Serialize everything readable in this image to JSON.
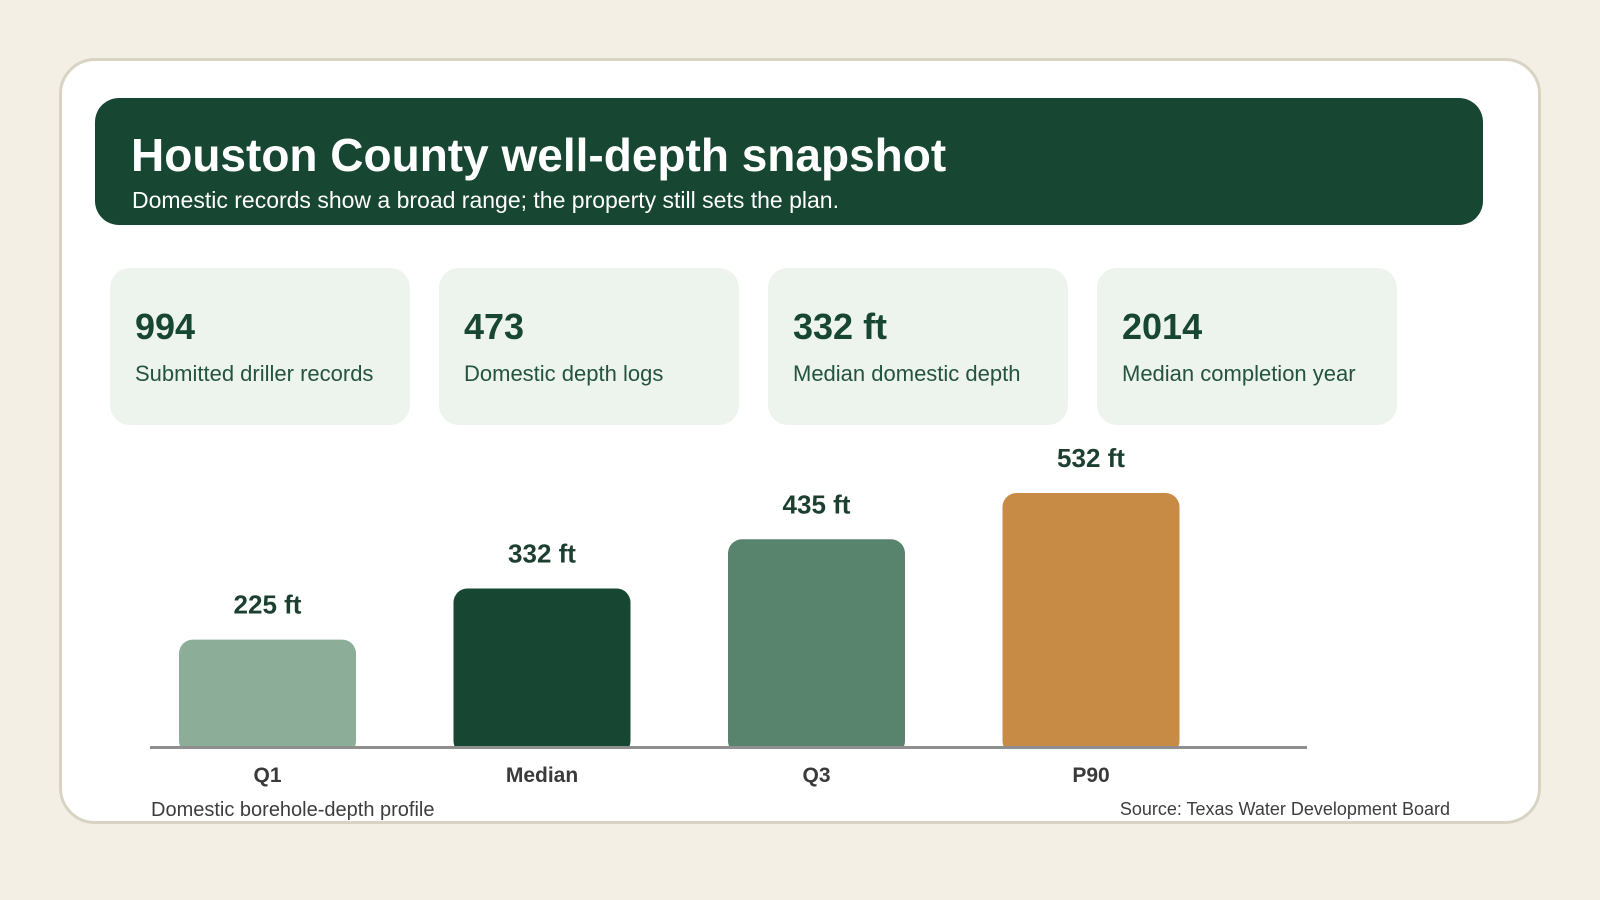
{
  "header": {
    "title": "Houston County well-depth snapshot",
    "subtitle": "Domestic records show a broad range; the property still sets the plan."
  },
  "stats": [
    {
      "value": "994",
      "label": "Submitted driller records"
    },
    {
      "value": "473",
      "label": "Domestic depth logs"
    },
    {
      "value": "332 ft",
      "label": "Median domestic depth"
    },
    {
      "value": "2014",
      "label": "Median completion year"
    }
  ],
  "chart_data": {
    "type": "bar",
    "title": "",
    "xlabel": "",
    "ylabel": "",
    "categories": [
      "Q1",
      "Median",
      "Q3",
      "P90"
    ],
    "values": [
      225,
      332,
      435,
      532
    ],
    "value_labels": [
      "225 ft",
      "332 ft",
      "435 ft",
      "532 ft"
    ],
    "colors": [
      "#8cad98",
      "#174632",
      "#58846d",
      "#c78b46"
    ],
    "ylim": [
      0,
      532
    ],
    "grid": false,
    "legend": "none"
  },
  "footer": {
    "caption": "Domestic borehole-depth profile",
    "source": "Source: Texas Water Development Board"
  }
}
